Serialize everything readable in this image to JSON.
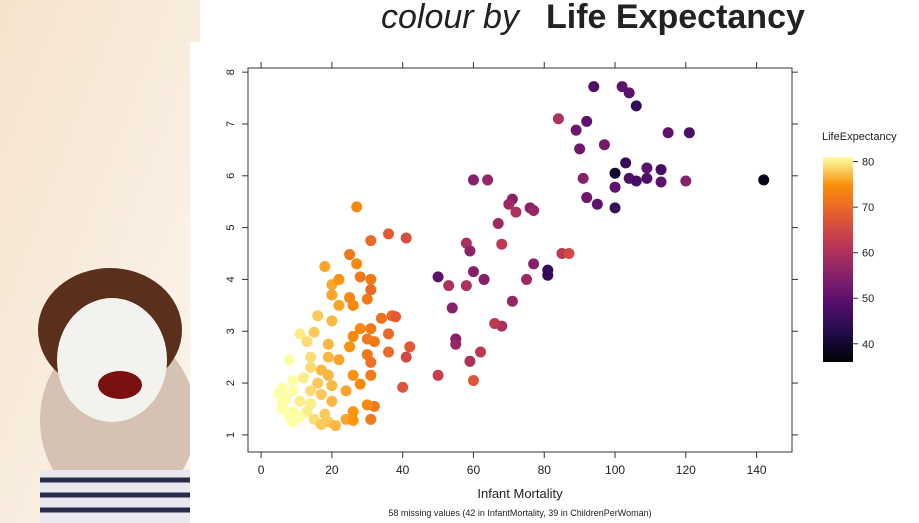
{
  "chart_data": {
    "type": "scatter",
    "title_prefix": "colour by",
    "title": "Life Expectancy",
    "x_label": "Infant Mortality",
    "subtitle": "58 missing values (42 in InfantMortality, 39 in ChildrenPerWoman)",
    "legend_title": "LifeExpectancy",
    "xlim": [
      -3.7,
      150
    ],
    "xticks": [
      0,
      20,
      40,
      60,
      80,
      100,
      120,
      140
    ],
    "ylim": [
      0.67,
      8.08
    ],
    "yticks": [
      1,
      2,
      3,
      4,
      5,
      6,
      7,
      8
    ],
    "clim": [
      36,
      81
    ],
    "cticks": [
      40,
      50,
      60,
      70,
      80
    ],
    "colormap": "inferno",
    "x": [
      142,
      94,
      102,
      104,
      106,
      115,
      121,
      89,
      92,
      97,
      90,
      103,
      100,
      104,
      106,
      109,
      113,
      109,
      113,
      120,
      91,
      100,
      95,
      100,
      92,
      84,
      60,
      64,
      71,
      70,
      72,
      76,
      77,
      67,
      68,
      58,
      59,
      85,
      87,
      81,
      81,
      77,
      50,
      60,
      75,
      58,
      63,
      53,
      54,
      71,
      68,
      66,
      55,
      55,
      59,
      62,
      60,
      50,
      40,
      41,
      42,
      36,
      27,
      31,
      36,
      41,
      25,
      27,
      18,
      20,
      22,
      28,
      31,
      20,
      25,
      30,
      31,
      22,
      26,
      16,
      20,
      34,
      37,
      38,
      28,
      31,
      11,
      15,
      26,
      30,
      32,
      36,
      13,
      19,
      25,
      30,
      8,
      14,
      19,
      22,
      31,
      14,
      17,
      19,
      26,
      31,
      9,
      12,
      16,
      20,
      28,
      6,
      9,
      14,
      17,
      24,
      7,
      11,
      14,
      20,
      32,
      6,
      9,
      13,
      18,
      26,
      30,
      8,
      11,
      15,
      19,
      24,
      26,
      17,
      21,
      31,
      6,
      5,
      9
    ],
    "y": [
      5.92,
      7.72,
      7.72,
      7.6,
      7.35,
      6.83,
      6.83,
      6.88,
      7.05,
      6.6,
      6.52,
      6.25,
      6.05,
      5.95,
      5.9,
      5.95,
      5.88,
      6.15,
      6.12,
      5.9,
      5.95,
      5.78,
      5.45,
      5.38,
      5.58,
      7.1,
      5.92,
      5.92,
      5.55,
      5.45,
      5.3,
      5.38,
      5.33,
      5.08,
      4.68,
      4.7,
      4.55,
      4.5,
      4.5,
      4.18,
      4.08,
      4.3,
      4.05,
      4.15,
      4.0,
      3.88,
      4.0,
      3.88,
      3.45,
      3.58,
      3.1,
      3.15,
      2.85,
      2.75,
      2.42,
      2.6,
      2.05,
      2.15,
      1.92,
      2.5,
      2.7,
      2.6,
      5.4,
      4.75,
      4.88,
      4.8,
      4.48,
      4.3,
      4.25,
      3.9,
      4.0,
      4.05,
      4.0,
      3.7,
      3.65,
      3.62,
      3.8,
      3.5,
      3.5,
      3.3,
      3.2,
      3.25,
      3.3,
      3.28,
      3.05,
      3.05,
      2.95,
      2.98,
      2.9,
      2.85,
      2.8,
      2.95,
      2.8,
      2.75,
      2.7,
      2.55,
      2.45,
      2.5,
      2.5,
      2.45,
      2.4,
      2.3,
      2.25,
      2.15,
      2.15,
      2.15,
      2.05,
      2.1,
      2.0,
      1.95,
      1.98,
      1.9,
      1.85,
      1.85,
      1.78,
      1.85,
      1.7,
      1.65,
      1.6,
      1.65,
      1.55,
      1.5,
      1.45,
      1.45,
      1.4,
      1.45,
      1.58,
      1.35,
      1.35,
      1.3,
      1.25,
      1.3,
      1.28,
      1.2,
      1.18,
      1.3,
      1.6,
      1.8,
      1.25
    ],
    "color_values": [
      38,
      48,
      50,
      50,
      45,
      50,
      48,
      52,
      50,
      53,
      52,
      45,
      40,
      48,
      47,
      48,
      50,
      50,
      47,
      55,
      55,
      50,
      50,
      45,
      52,
      60,
      55,
      57,
      55,
      58,
      60,
      55,
      57,
      58,
      62,
      60,
      56,
      62,
      65,
      45,
      45,
      55,
      50,
      55,
      58,
      60,
      55,
      60,
      55,
      57,
      60,
      62,
      55,
      57,
      60,
      62,
      67,
      63,
      67,
      65,
      68,
      70,
      74,
      70,
      68,
      66,
      72,
      74,
      76,
      76,
      75,
      72,
      72,
      76,
      74,
      72,
      70,
      76,
      74,
      78,
      77,
      71,
      70,
      68,
      74,
      72,
      80,
      78,
      74,
      72,
      72,
      70,
      79,
      77,
      75,
      72,
      81,
      79,
      77,
      76,
      71,
      79,
      77,
      77,
      75,
      72,
      82,
      80,
      78,
      77,
      74,
      82,
      81,
      79,
      78,
      76,
      82,
      80,
      80,
      77,
      72,
      82,
      81,
      80,
      78,
      75,
      74,
      82,
      81,
      79,
      78,
      76,
      75,
      78,
      77,
      72,
      81,
      82,
      81
    ]
  }
}
